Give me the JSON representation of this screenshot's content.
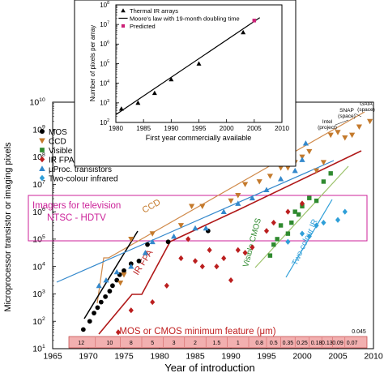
{
  "chart_data": [
    {
      "type": "scatter",
      "xlabel": "Year of introduction",
      "ylabel": "Microprocessor transistor or imaging pixels",
      "xlim": [
        1965,
        2010
      ],
      "ylim_log10": [
        1,
        10
      ],
      "y_scale": "log",
      "x_ticks": [
        "1965",
        "1970",
        "1975",
        "1980",
        "1985",
        "1990",
        "1995",
        "2000",
        "2005",
        "2010"
      ],
      "y_ticks": [
        {
          "base": "10",
          "exp": "1"
        },
        {
          "base": "10",
          "exp": "2"
        },
        {
          "base": "10",
          "exp": "3"
        },
        {
          "base": "10",
          "exp": "4"
        },
        {
          "base": "10",
          "exp": "5"
        },
        {
          "base": "10",
          "exp": "6"
        },
        {
          "base": "10",
          "exp": "7"
        },
        {
          "base": "10",
          "exp": "8"
        },
        {
          "base": "10",
          "exp": "9"
        },
        {
          "base": "10",
          "exp": "10"
        }
      ],
      "legend_position": "top-left",
      "series": [
        {
          "name": "MOS",
          "marker": "circle",
          "color": "#000000",
          "points": [
            [
              1969.3,
              1.7
            ],
            [
              1970.2,
              2.0
            ],
            [
              1970.8,
              2.3
            ],
            [
              1971.3,
              2.5
            ],
            [
              1971.8,
              2.7
            ],
            [
              1972.4,
              2.9
            ],
            [
              1973,
              3.1
            ],
            [
              1973.4,
              3.3
            ],
            [
              1974,
              3.5
            ],
            [
              1974.4,
              3.7
            ],
            [
              1975,
              3.85
            ],
            [
              1976,
              4.1
            ],
            [
              1977.1,
              4.2
            ],
            [
              1978.3,
              4.8
            ],
            [
              1981.2,
              4.9
            ],
            [
              1986.8,
              5.3
            ]
          ]
        },
        {
          "name": "CCD",
          "marker": "triangle-down",
          "color": "#c47a2c",
          "points": [
            [
              1974.5,
              3.4
            ],
            [
              1975,
              3.7
            ],
            [
              1976,
              5.0
            ],
            [
              1979,
              5.2
            ],
            [
              1983,
              5.5
            ],
            [
              1984.5,
              6.2
            ],
            [
              1986,
              6.2
            ],
            [
              1990,
              6.4
            ],
            [
              1991,
              6.6
            ],
            [
              1992,
              7.0
            ],
            [
              1994,
              7.1
            ],
            [
              1995.5,
              7.3
            ],
            [
              1997,
              7.6
            ],
            [
              1998,
              7.6
            ],
            [
              1999,
              7.8
            ],
            [
              2000,
              8.0
            ],
            [
              2001,
              8.2
            ],
            [
              2002,
              7.5
            ],
            [
              2003,
              7.8
            ],
            [
              2004,
              8.8
            ],
            [
              2005,
              8.9
            ],
            [
              2006,
              8.7
            ],
            [
              2007,
              8.8
            ],
            [
              2008,
              9.1
            ],
            [
              2009.5,
              9.3
            ]
          ]
        },
        {
          "name": "Visible CMOS",
          "marker": "square",
          "color": "#2f8a2f",
          "points": [
            [
              1995.5,
              4.4
            ],
            [
              1996,
              4.8
            ],
            [
              1996.5,
              5.0
            ],
            [
              1997,
              5.5
            ],
            [
              1998,
              5.2
            ],
            [
              1998.5,
              5.6
            ],
            [
              1999,
              6.0
            ],
            [
              1999.5,
              5.9
            ],
            [
              2000,
              6.2
            ],
            [
              2001,
              6.5
            ],
            [
              2002,
              6.4
            ],
            [
              2003,
              7.1
            ],
            [
              2004,
              7.4
            ]
          ]
        },
        {
          "name": "IR FPA",
          "marker": "diamond",
          "color": "#bb1f1f",
          "points": [
            [
              1974.2,
              1.6
            ],
            [
              1976,
              2.4
            ],
            [
              1979,
              2.7
            ],
            [
              1981,
              3.3
            ],
            [
              1983,
              4.3
            ],
            [
              1984,
              5.0
            ],
            [
              1985,
              4.2
            ],
            [
              1986,
              4.0
            ],
            [
              1987,
              4.6
            ],
            [
              1988,
              4.0
            ],
            [
              1989,
              4.3
            ],
            [
              1990,
              3.5
            ],
            [
              1991,
              4.6
            ],
            [
              1992,
              4.5
            ],
            [
              1993,
              4.7
            ],
            [
              1995,
              5.3
            ],
            [
              1996,
              5.6
            ],
            [
              1998,
              6.0
            ],
            [
              2000,
              6.3
            ]
          ]
        },
        {
          "name": "μProc. transistors",
          "marker": "triangle-up",
          "color": "#3388cc",
          "points": [
            [
              1971.5,
              3.3
            ],
            [
              1972.5,
              3.5
            ],
            [
              1974,
              3.8
            ],
            [
              1976,
              4.0
            ],
            [
              1978,
              4.5
            ],
            [
              1979,
              4.9
            ],
            [
              1982,
              5.1
            ],
            [
              1985,
              5.4
            ],
            [
              1986.5,
              5.4
            ],
            [
              1989,
              6.0
            ],
            [
              1991,
              6.3
            ],
            [
              1993,
              6.5
            ],
            [
              1995,
              6.8
            ],
            [
              1997,
              7.2
            ],
            [
              1999,
              7.5
            ],
            [
              2000,
              7.9
            ],
            [
              2000.5,
              8.5
            ]
          ]
        },
        {
          "name": "Two-colour infrared",
          "marker": "diamond",
          "color": "#2f9fd8",
          "points": [
            [
              1998,
              4.9
            ],
            [
              2000,
              5.2
            ],
            [
              2001,
              5.1
            ],
            [
              2002,
              5.5
            ],
            [
              2003,
              5.6
            ],
            [
              2005,
              5.7
            ],
            [
              2006,
              6.0
            ]
          ]
        }
      ],
      "annotations": [
        {
          "text": "CCD"
        },
        {
          "text": "IR FPA"
        },
        {
          "text": "Visible CMOS"
        },
        {
          "text": "Two-colour IR"
        },
        {
          "text": "Imagers for television"
        },
        {
          "text": "NTSC - HDTV"
        },
        {
          "text": "MOS or CMOS minimum feature (μm)"
        },
        {
          "text": "GAIA (space)"
        },
        {
          "text": "SNAP (space)"
        },
        {
          "text": "Intel (project)"
        }
      ],
      "feature_size_years": [
        1969,
        1973,
        1976,
        1979,
        1982,
        1985,
        1988,
        1991,
        1994,
        1996,
        1998,
        2000,
        2002,
        2003.5,
        2005,
        2007
      ],
      "feature_size_labels": [
        "12",
        "10",
        "8",
        "5",
        "3",
        "2",
        "1.5",
        "1",
        "0.8",
        "0.5",
        "0.35",
        "0.25",
        "0.18",
        "0.13",
        "0.09",
        "0.07"
      ],
      "feature_size_last": "0.045"
    },
    {
      "type": "scatter",
      "xlabel": "First year commercially available",
      "ylabel": "Number of pixels per array",
      "xlim": [
        1980,
        2010
      ],
      "ylim_log10": [
        2,
        8
      ],
      "y_scale": "log",
      "x_ticks": [
        "1980",
        "1985",
        "1990",
        "1995",
        "2000",
        "2005",
        "2010"
      ],
      "y_ticks": [
        {
          "base": "10",
          "exp": "2"
        },
        {
          "base": "10",
          "exp": "3"
        },
        {
          "base": "10",
          "exp": "4"
        },
        {
          "base": "10",
          "exp": "5"
        },
        {
          "base": "10",
          "exp": "6"
        },
        {
          "base": "10",
          "exp": "7"
        },
        {
          "base": "10",
          "exp": "8"
        }
      ],
      "legend_position": "top-left",
      "series": [
        {
          "name": "Thermal IR arrays",
          "marker": "triangle-up",
          "color": "#000000",
          "points": [
            [
              1981,
              2.7
            ],
            [
              1984,
              3.0
            ],
            [
              1987,
              3.5
            ],
            [
              1990,
              4.2
            ],
            [
              1995,
              5.0
            ],
            [
              2003,
              6.6
            ]
          ]
        },
        {
          "name": "Moore's law with 19-month doubling time",
          "marker": "line",
          "color": "#000000",
          "points": [
            [
              1980,
              2.4
            ],
            [
              2006,
              7.35
            ]
          ]
        },
        {
          "name": "Predicted",
          "marker": "square",
          "color": "#cc2277",
          "points": [
            [
              2005,
              7.2
            ]
          ]
        }
      ]
    }
  ]
}
